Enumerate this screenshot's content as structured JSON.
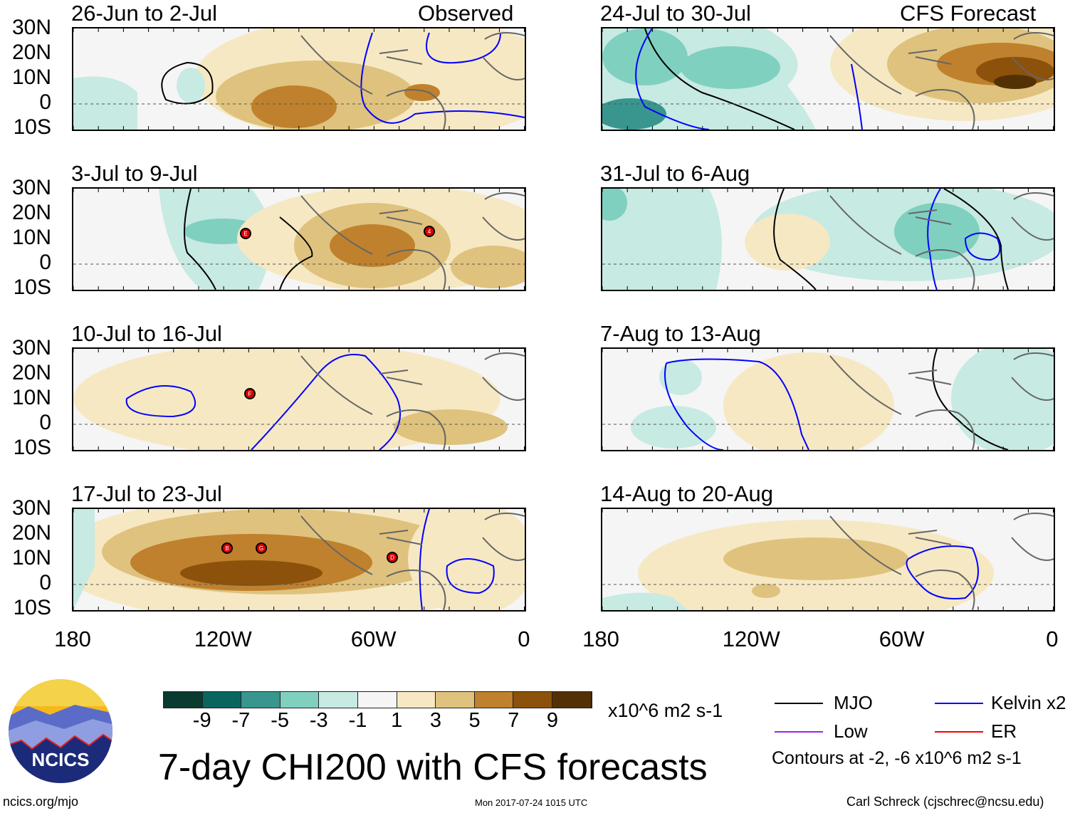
{
  "figure_title": "7-day CHI200 with CFS forecasts",
  "observed_label": "Observed",
  "forecast_label": "CFS Forecast",
  "lat_labels": [
    "30N",
    "20N",
    "10N",
    "0",
    "10S"
  ],
  "lon_labels": [
    "180",
    "120W",
    "60W",
    "0"
  ],
  "panels_left": [
    {
      "title": "26-Jun to 2-Jul",
      "storms": []
    },
    {
      "title": "3-Jul to 9-Jul",
      "storms": [
        "E",
        "4"
      ]
    },
    {
      "title": "10-Jul to 16-Jul",
      "storms": [
        "F"
      ]
    },
    {
      "title": "17-Jul to 23-Jul",
      "storms": [
        "B",
        "G",
        "D"
      ]
    }
  ],
  "panels_right": [
    {
      "title": "24-Jul to 30-Jul"
    },
    {
      "title": "31-Jul to 6-Aug"
    },
    {
      "title": "7-Aug to 13-Aug"
    },
    {
      "title": "14-Aug to 20-Aug"
    }
  ],
  "colorbar": {
    "labels": [
      "-9",
      "-7",
      "-5",
      "-3",
      "-1",
      "1",
      "3",
      "5",
      "7",
      "9"
    ],
    "units": "x10^6 m2 s-1",
    "colors": [
      "#0a3a30",
      "#08665e",
      "#38968e",
      "#80d0c0",
      "#c7eae3",
      "#f5f5f5",
      "#f6e8c3",
      "#dfc27d",
      "#bf812d",
      "#8c510a",
      "#543005"
    ]
  },
  "legend": {
    "mjo": {
      "label": "MJO",
      "color": "#000000"
    },
    "kelvin": {
      "label": "Kelvin x2",
      "color": "#0000ff"
    },
    "low": {
      "label": "Low",
      "color": "#a020f0"
    },
    "er": {
      "label": "ER",
      "color": "#ff0000"
    },
    "contours_note": "Contours at -2, -6 x10^6 m2 s-1"
  },
  "logo_text": "NCICS",
  "footer": {
    "url": "ncics.org/mjo",
    "timestamp": "Mon 2017-07-24 1015 UTC",
    "author": "Carl Schreck (cjschrec@ncsu.edu)"
  }
}
